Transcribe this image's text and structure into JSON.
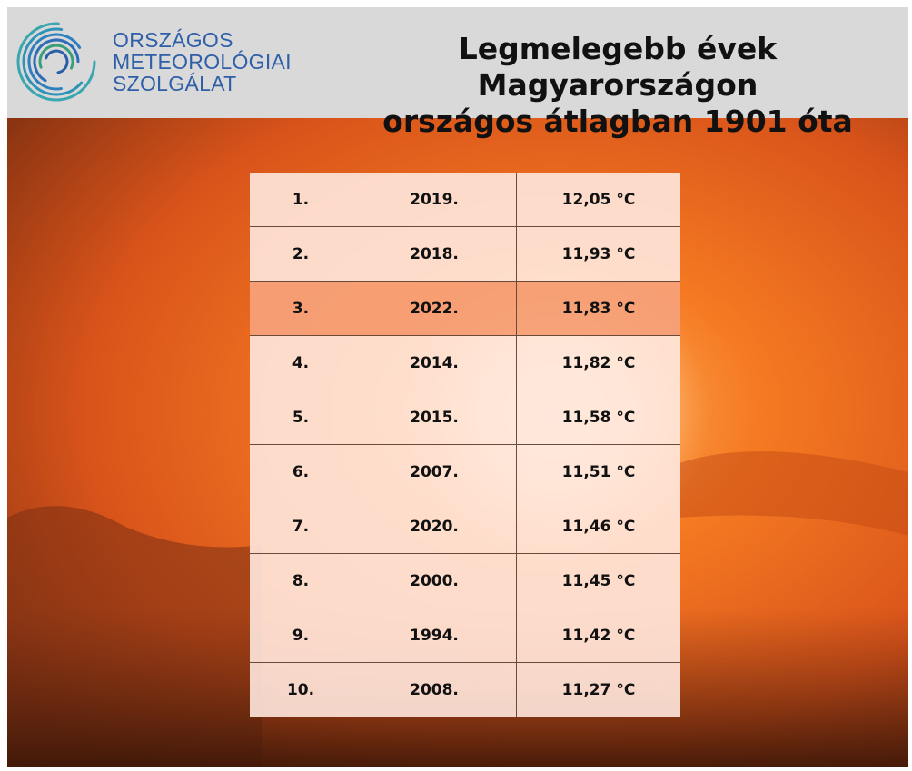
{
  "header": {
    "logo": [
      "ORSZÁGOS",
      "METEOROLÓGIAI",
      "SZOLGÁLAT"
    ],
    "title": [
      "Legmelegebb évek Magyarországon",
      "országos átlagban 1901 óta"
    ]
  },
  "table": {
    "rows": [
      [
        "1.",
        "2019.",
        "12,05 °C"
      ],
      [
        "2.",
        "2018.",
        "11,93 °C"
      ],
      [
        "3.",
        "2022.",
        "11,83 °C"
      ],
      [
        "4.",
        "2014.",
        "11,82 °C"
      ],
      [
        "5.",
        "2015.",
        "11,58 °C"
      ],
      [
        "6.",
        "2007.",
        "11,51 °C"
      ],
      [
        "7.",
        "2020.",
        "11,46 °C"
      ],
      [
        "8.",
        "2000.",
        "11,45 °C"
      ],
      [
        "9.",
        "1994.",
        "11,42 °C"
      ],
      [
        "10.",
        "2008.",
        "11,27 °C"
      ]
    ]
  }
}
